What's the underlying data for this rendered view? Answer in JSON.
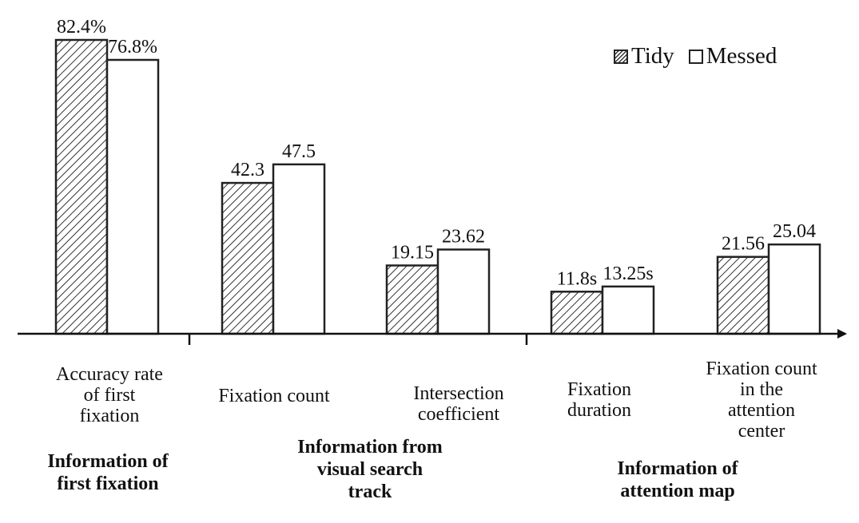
{
  "chart_data": {
    "type": "bar",
    "categories": [
      "Accuracy rate of first fixation",
      "Fixation count",
      "Intersection coefficient",
      "Fixation duration",
      "Fixation count in the attention center"
    ],
    "series": [
      {
        "name": "Tidy",
        "values": [
          82.4,
          42.3,
          19.15,
          11.8,
          21.56
        ],
        "labels": [
          "82.4%",
          "42.3",
          "19.15",
          "11.8s",
          "21.56"
        ],
        "pattern": "hatched"
      },
      {
        "name": "Messed",
        "values": [
          76.8,
          47.5,
          23.62,
          13.25,
          25.04
        ],
        "labels": [
          "76.8%",
          "47.5",
          "23.62",
          "13.25s",
          "25.04"
        ],
        "pattern": "plain"
      }
    ],
    "groups": [
      {
        "label_lines": [
          "Information of",
          "first fixation"
        ],
        "categories": [
          0
        ]
      },
      {
        "label_lines": [
          "Information from",
          "visual search",
          "track"
        ],
        "categories": [
          1,
          2
        ]
      },
      {
        "label_lines": [
          "Information of",
          "attention map"
        ],
        "categories": [
          3,
          4
        ]
      }
    ],
    "legend": {
      "position": "top-right",
      "entries": [
        "Tidy",
        "Messed"
      ]
    },
    "grid": false,
    "colors": {
      "axis": "#111111",
      "bar_edge": "#222222",
      "hatch": "#333333",
      "fill": "#ffffff"
    }
  },
  "category_label_lines": [
    [
      "Accuracy rate",
      "of first",
      "fixation"
    ],
    [
      "Fixation count"
    ],
    [
      "Intersection",
      "coefficient"
    ],
    [
      "Fixation",
      "duration"
    ],
    [
      "Fixation count",
      "in the",
      "attention",
      "center"
    ]
  ]
}
